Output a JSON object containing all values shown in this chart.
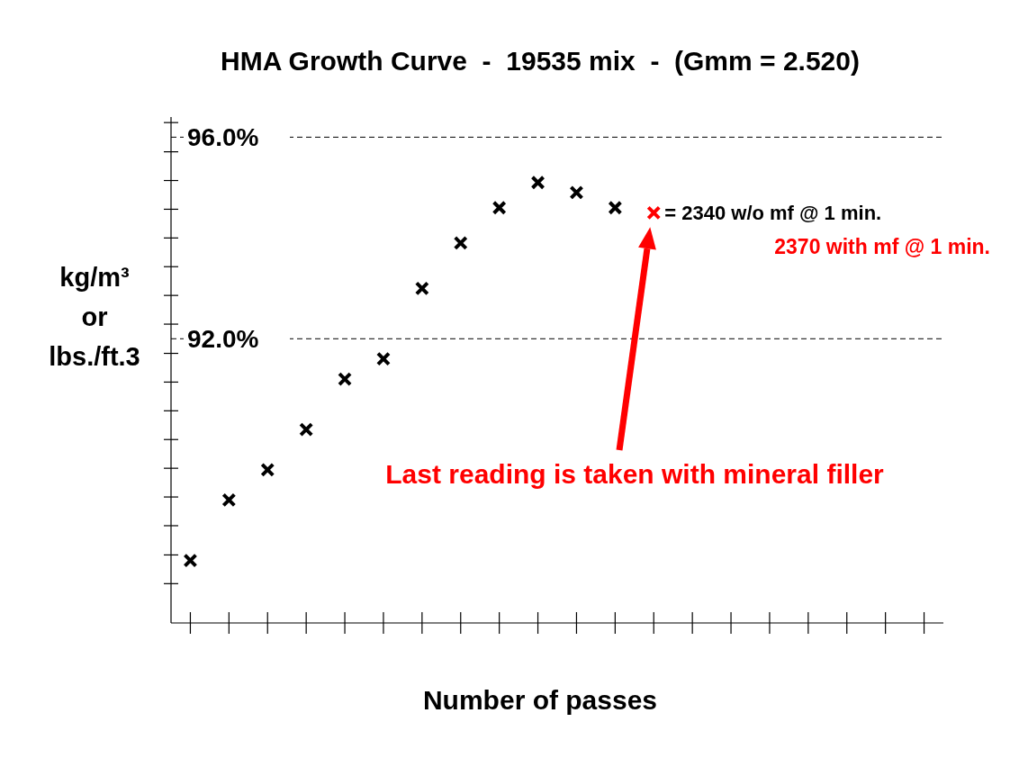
{
  "chart_data": {
    "type": "scatter",
    "title": "HMA Growth Curve  -  19535 mix  -  (Gmm = 2.520)",
    "xlabel": "Number of passes",
    "ylabel": "kg/m³\nor\nlbs./ft.3",
    "categories": [
      null,
      null,
      null,
      null,
      null,
      null,
      null,
      null,
      null,
      null,
      null,
      null,
      null,
      null,
      null,
      null,
      null,
      null,
      null,
      null
    ],
    "series": [
      {
        "values": [
          87.6,
          88.8,
          89.4,
          90.2,
          91.2,
          91.6,
          93.0,
          93.9,
          94.6,
          95.1,
          94.9,
          94.6,
          94.5,
          null,
          null,
          null,
          null,
          null,
          null,
          null
        ],
        "colors": [
          "#000000",
          "#000000",
          "#000000",
          "#000000",
          "#000000",
          "#000000",
          "#000000",
          "#000000",
          "#000000",
          "#000000",
          "#000000",
          "#000000",
          "#ff0000",
          null,
          null,
          null,
          null,
          null,
          null,
          null
        ]
      }
    ],
    "ylim": [
      86.36,
      96.4
    ],
    "yticks": [
      {
        "value": 96.29,
        "label": null
      },
      {
        "value": 96.0,
        "label": "96.0%"
      },
      {
        "value": 95.71,
        "label": null
      },
      {
        "value": 95.14,
        "label": null
      },
      {
        "value": 94.57,
        "label": null
      },
      {
        "value": 94.0,
        "label": null
      },
      {
        "value": 93.43,
        "label": null
      },
      {
        "value": 92.86,
        "label": null
      },
      {
        "value": 92.29,
        "label": null
      },
      {
        "value": 92.0,
        "label": "92.0%"
      },
      {
        "value": 91.71,
        "label": null
      },
      {
        "value": 91.14,
        "label": null
      },
      {
        "value": 90.57,
        "label": null
      },
      {
        "value": 90.0,
        "label": null
      },
      {
        "value": 89.43,
        "label": null
      },
      {
        "value": 88.86,
        "label": null
      },
      {
        "value": 88.29,
        "label": null
      },
      {
        "value": 87.71,
        "label": null
      },
      {
        "value": 87.14,
        "label": null
      }
    ],
    "marker": "cross",
    "ref_lines": [
      {
        "axis": "y",
        "value": 96.0,
        "color": "#000000",
        "line_style": "dashed"
      },
      {
        "axis": "y",
        "value": 92.0,
        "color": "#000000",
        "line_style": "dashed"
      }
    ],
    "annotations": [
      "= 2340 w/o mf @ 1 min.",
      "2370 with mf @ 1 min.",
      "Last reading is taken with mineral filler"
    ]
  }
}
